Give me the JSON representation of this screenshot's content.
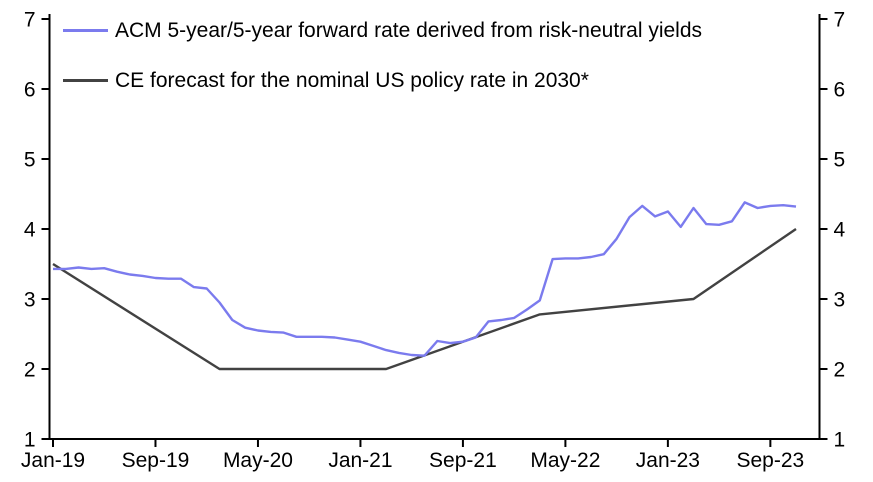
{
  "chart_data": {
    "type": "line",
    "title": "",
    "xlabel": "",
    "ylabel": "",
    "ylim": [
      1,
      7
    ],
    "y_ticks": [
      1,
      2,
      3,
      4,
      5,
      6,
      7
    ],
    "y_axis_mirrored_right": true,
    "grid": false,
    "legend_position": "top-left-inside",
    "x_tick_labels": [
      "Jan-19",
      "Sep-19",
      "May-20",
      "Jan-21",
      "Sep-21",
      "May-22",
      "Jan-23",
      "Sep-23"
    ],
    "x_tick_month_index": [
      0,
      8,
      16,
      24,
      32,
      40,
      48,
      56
    ],
    "x_start": "Jan-19",
    "x_end": "Nov-23",
    "series": [
      {
        "name": "ACM 5-year/5-year forward rate derived from risk-neutral yields",
        "color": "#7b7bee",
        "sampling": "monthly",
        "start": "Jan-19",
        "values": [
          3.43,
          3.43,
          3.45,
          3.43,
          3.44,
          3.39,
          3.35,
          3.33,
          3.3,
          3.29,
          3.29,
          3.17,
          3.15,
          2.95,
          2.7,
          2.59,
          2.55,
          2.53,
          2.52,
          2.46,
          2.46,
          2.46,
          2.45,
          2.42,
          2.39,
          2.33,
          2.27,
          2.23,
          2.2,
          2.19,
          2.4,
          2.37,
          2.39,
          2.45,
          2.68,
          2.7,
          2.73,
          2.85,
          2.98,
          3.57,
          3.58,
          3.58,
          3.6,
          3.64,
          3.86,
          4.17,
          4.33,
          4.18,
          4.25,
          4.03,
          4.3,
          4.07,
          4.06,
          4.11,
          4.38,
          4.3,
          4.33,
          4.34,
          4.32
        ]
      },
      {
        "name": "CE forecast for the nominal US policy rate in 2030*",
        "color": "#424242",
        "sampling": "anchor-points",
        "anchors": [
          {
            "date": "Jan-19",
            "month_index": 0,
            "value": 3.5
          },
          {
            "date": "Feb-20",
            "month_index": 13,
            "value": 2.0
          },
          {
            "date": "Mar-21",
            "month_index": 26,
            "value": 2.0
          },
          {
            "date": "Mar-22",
            "month_index": 38,
            "value": 2.78
          },
          {
            "date": "Mar-23",
            "month_index": 50,
            "value": 3.0
          },
          {
            "date": "Nov-23",
            "month_index": 58,
            "value": 4.0
          }
        ]
      }
    ]
  }
}
